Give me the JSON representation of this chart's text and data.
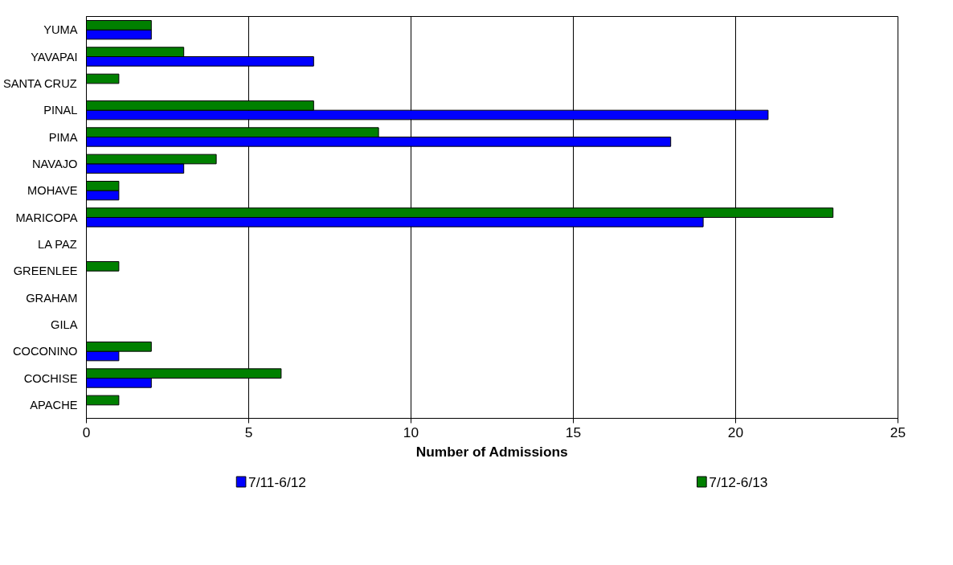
{
  "chart_data": {
    "type": "bar",
    "orientation": "horizontal",
    "xlabel": "Number of Admissions",
    "categories": [
      "YUMA",
      "YAVAPAI",
      "SANTA CRUZ",
      "PINAL",
      "PIMA",
      "NAVAJO",
      "MOHAVE",
      "MARICOPA",
      "LA PAZ",
      "GREENLEE",
      "GRAHAM",
      "GILA",
      "COCONINO",
      "COCHISE",
      "APACHE"
    ],
    "series": [
      {
        "name": "7/11-6/12",
        "color": "#0000ff",
        "values": [
          2,
          7,
          0,
          21,
          18,
          3,
          1,
          19,
          0,
          0,
          0,
          0,
          1,
          2,
          0
        ]
      },
      {
        "name": "7/12-6/13",
        "color": "#008000",
        "values": [
          2,
          3,
          1,
          7,
          9,
          4,
          1,
          23,
          0,
          1,
          0,
          0,
          2,
          6,
          1
        ]
      }
    ],
    "xlim": [
      0,
      25
    ],
    "xticks": [
      0,
      5,
      10,
      15,
      20,
      25
    ],
    "grid": "x",
    "legend": "bottom"
  }
}
